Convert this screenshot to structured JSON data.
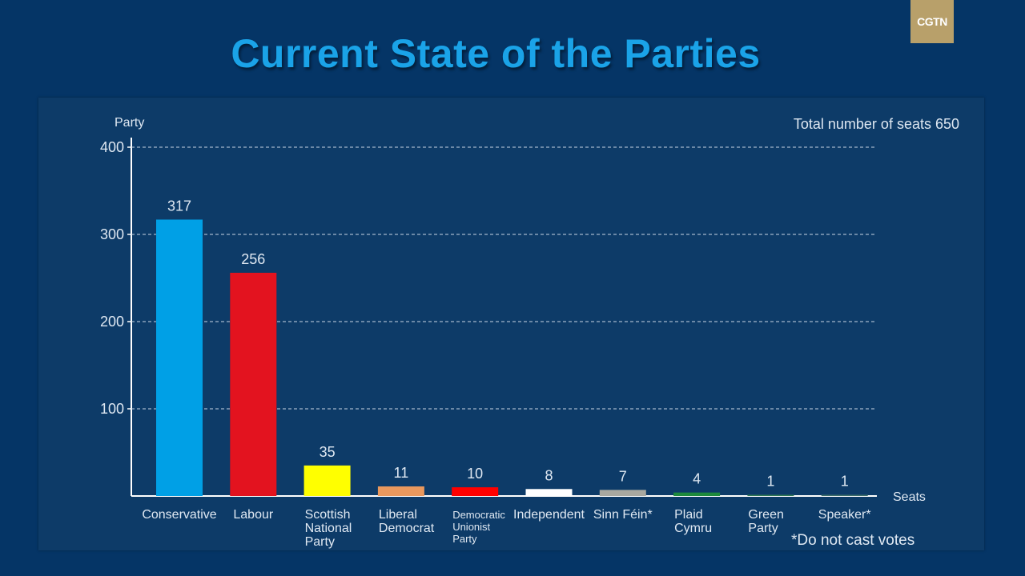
{
  "brand": {
    "logo_text": "CGTN"
  },
  "page": {
    "title": "Current State of the Parties"
  },
  "chart_data": {
    "type": "bar",
    "y_axis_title": "Party",
    "x_axis_title": "Seats",
    "total_note": "Total number of seats 650",
    "footnote": "*Do not cast votes",
    "ylim": [
      0,
      400
    ],
    "yticks": [
      100,
      200,
      300,
      400
    ],
    "grid": true,
    "categories": [
      [
        "Conservative"
      ],
      [
        "Labour"
      ],
      [
        "Scottish",
        "National",
        "Party"
      ],
      [
        "Liberal",
        "Democrat"
      ],
      [
        "Democratic",
        "Unionist",
        "Party"
      ],
      [
        "Independent"
      ],
      [
        "Sinn Féin*"
      ],
      [
        "Plaid",
        "Cymru"
      ],
      [
        "Green",
        "Party"
      ],
      [
        "Speaker*"
      ]
    ],
    "values": [
      317,
      256,
      35,
      11,
      10,
      8,
      7,
      4,
      1,
      1
    ],
    "colors": [
      "#00a0e6",
      "#e3131f",
      "#ffff00",
      "#e8985e",
      "#ff0000",
      "#ffffff",
      "#a8a8a0",
      "#1e8a3c",
      "#2f7a56",
      "#3d6e6a"
    ]
  }
}
